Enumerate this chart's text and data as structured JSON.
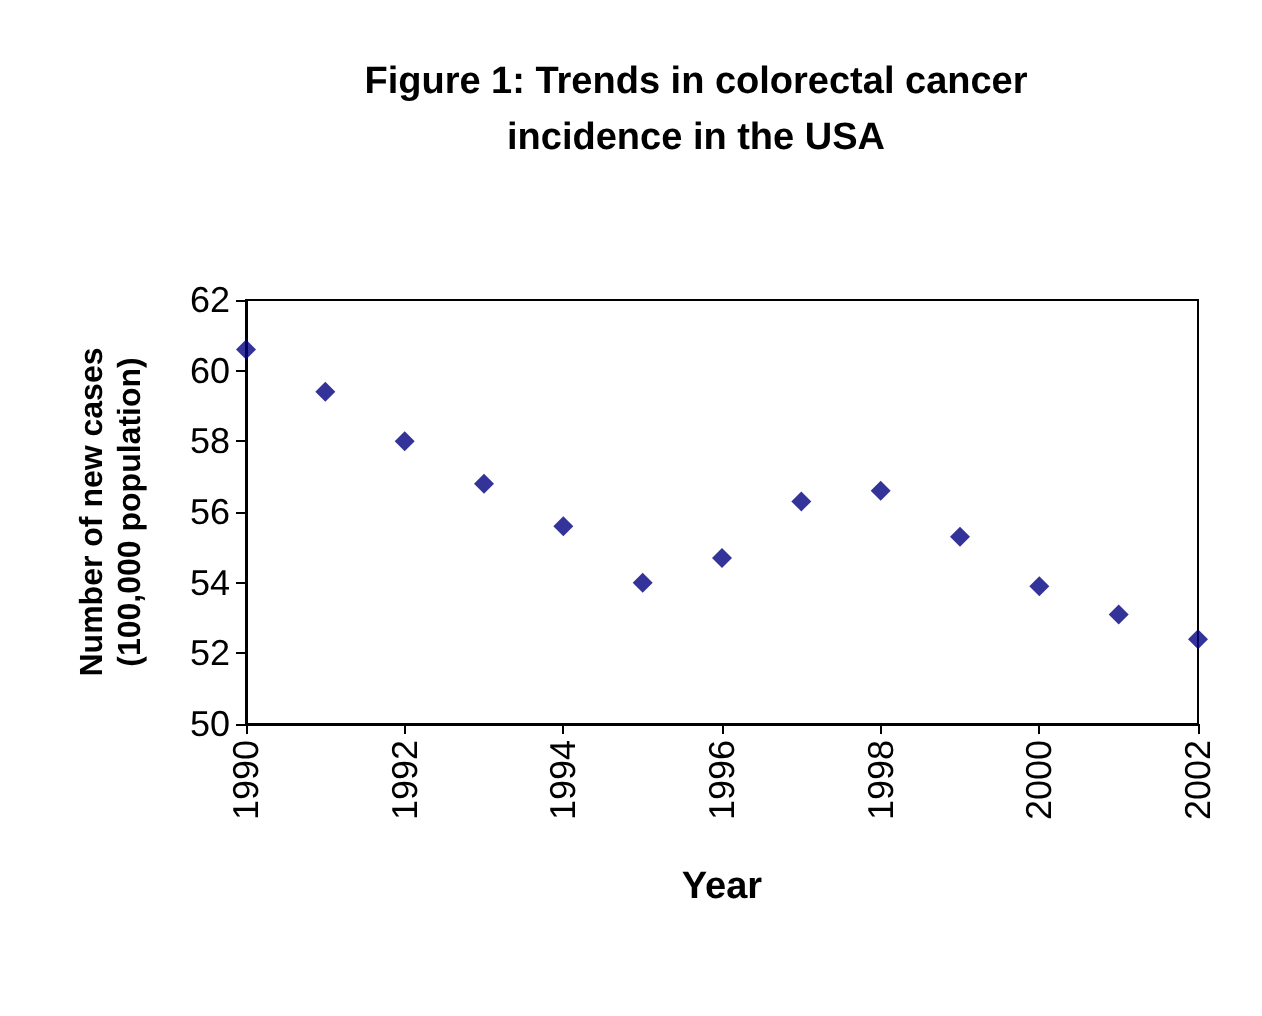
{
  "chart_data": {
    "type": "scatter",
    "title": "Figure 1: Trends in colorectal cancer\nincidence in the USA",
    "xlabel": "Year",
    "ylabel": "Number of new cases\n(100,000 population)",
    "x": [
      1990,
      1991,
      1992,
      1993,
      1994,
      1995,
      1996,
      1997,
      1998,
      1999,
      2000,
      2001,
      2002
    ],
    "series": [
      {
        "color": "#000080",
        "values": [
          60.6,
          59.4,
          58.0,
          56.8,
          55.6,
          54.0,
          54.7,
          56.3,
          56.6,
          55.3,
          53.9,
          53.1,
          52.4
        ]
      }
    ],
    "xlim": [
      1990,
      2002
    ],
    "xticks": [
      1990,
      1992,
      1994,
      1996,
      1998,
      2000,
      2002
    ],
    "ylim": [
      50,
      62
    ],
    "yticks": [
      50,
      52,
      54,
      56,
      58,
      60,
      62
    ],
    "grid": false,
    "marker": "diamond"
  }
}
